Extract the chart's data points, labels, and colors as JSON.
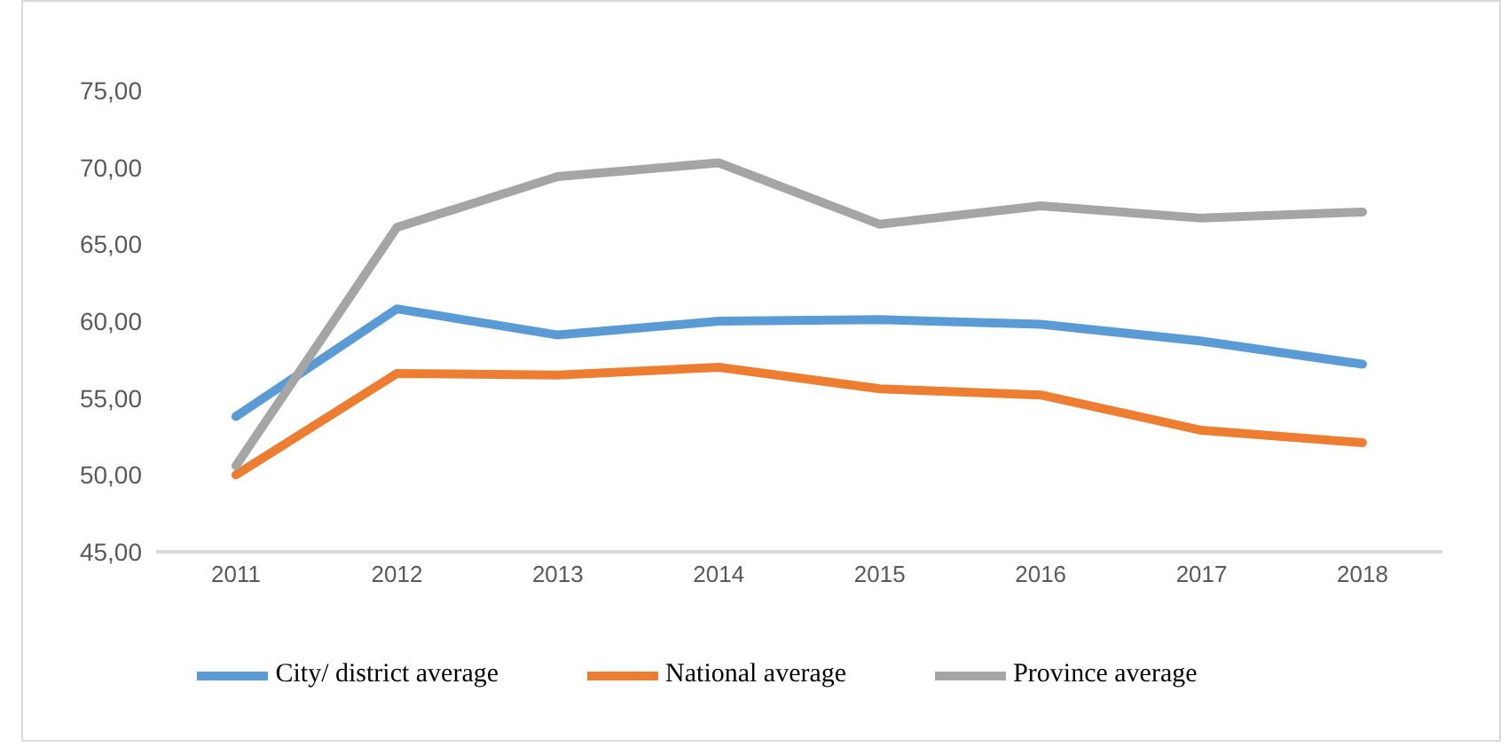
{
  "chart_data": {
    "type": "line",
    "categories": [
      "2011",
      "2012",
      "2013",
      "2014",
      "2015",
      "2016",
      "2017",
      "2018"
    ],
    "series": [
      {
        "name": "City/ district average",
        "color": "#5b9bd5",
        "values": [
          53.8,
          60.8,
          59.1,
          60.0,
          60.1,
          59.8,
          58.7,
          57.2
        ]
      },
      {
        "name": "National average",
        "color": "#ed7d31",
        "values": [
          50.0,
          56.6,
          56.5,
          57.0,
          55.6,
          55.2,
          52.9,
          52.1
        ]
      },
      {
        "name": "Province average",
        "color": "#a5a5a5",
        "values": [
          50.6,
          66.1,
          69.4,
          70.3,
          66.3,
          67.5,
          66.7,
          67.1
        ]
      }
    ],
    "ylim": [
      45,
      75
    ],
    "yticks": [
      {
        "value": 45,
        "label": "45,00"
      },
      {
        "value": 50,
        "label": "50,00"
      },
      {
        "value": 55,
        "label": "55,00"
      },
      {
        "value": 60,
        "label": "60,00"
      },
      {
        "value": 65,
        "label": "65,00"
      },
      {
        "value": 70,
        "label": "70,00"
      },
      {
        "value": 75,
        "label": "75,00"
      }
    ],
    "grid": false,
    "legend": "bottom",
    "marker": "none",
    "line_style": "solid"
  }
}
